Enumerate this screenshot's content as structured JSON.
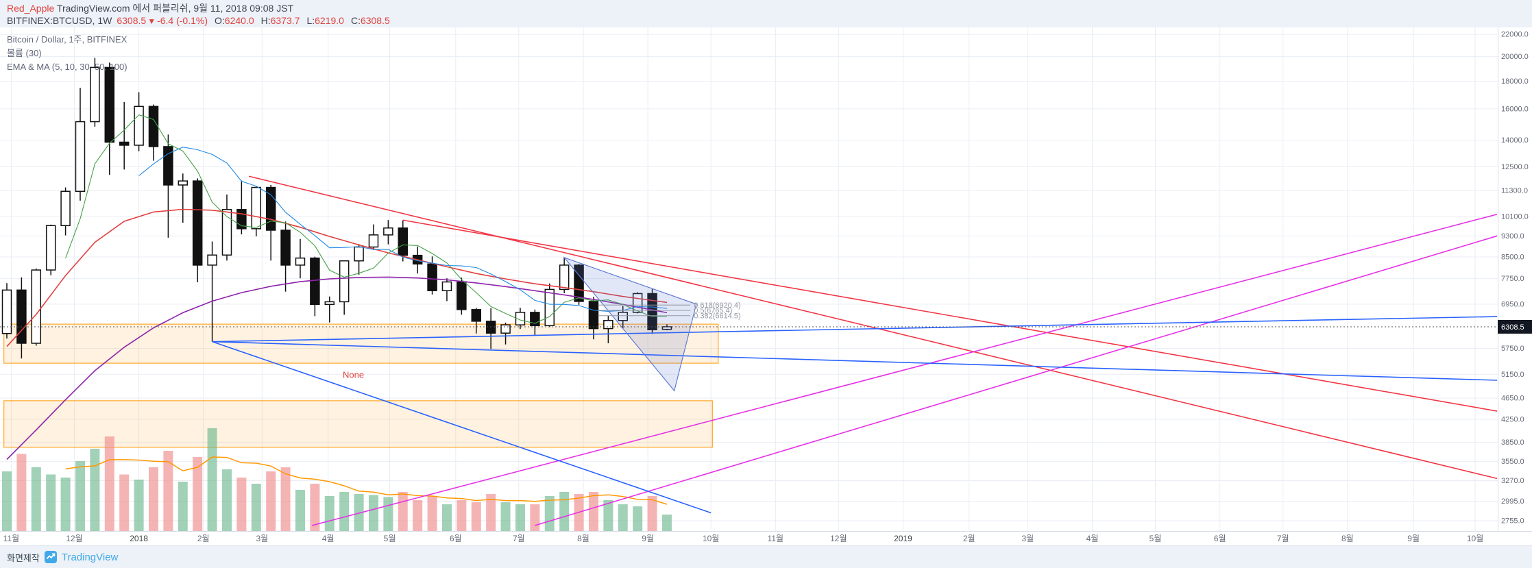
{
  "header": {
    "publisher": "Red_Apple",
    "publish_info": "TradingView.com 에서 퍼블리쉬, 9월 11, 2018 09:08 JST"
  },
  "quote": {
    "symbol": "BITFINEX:BTCUSD,",
    "interval": "1W",
    "last": "6308.5",
    "direction": "▼",
    "change": "-6.4 (-0.1%)",
    "o_label": "O:",
    "o_value": "6240.0",
    "h_label": "H:",
    "h_value": "6373.7",
    "l_label": "L:",
    "l_value": "6219.0",
    "c_label": "C:",
    "c_value": "6308.5"
  },
  "legend": {
    "title": "Bitcoin / Dollar, 1주, BITFINEX",
    "volume": "볼륨 (30)",
    "ma": "EMA & MA (5, 10, 30, 50, 100)"
  },
  "footer": {
    "made_label": "화면제작",
    "brand": "TradingView"
  },
  "colors": {
    "accent_red": "#e0433e",
    "brand_blue": "#3fa9e8"
  },
  "chart_data": {
    "type": "candlestick",
    "title": "Bitcoin / Dollar, 1주, BITFINEX",
    "symbol": "BITFINEX:BTCUSD",
    "interval": "1W",
    "yscale": "log",
    "ylim": [
      2637,
      22660
    ],
    "xlim_weeks": [
      -0.467,
      101.64
    ],
    "grid": true,
    "last_price": 6308.5,
    "price_ticks": [
      22000,
      20000,
      18000,
      16000,
      14000,
      12500,
      11300,
      10100,
      9300,
      8500,
      7750,
      6950,
      5750,
      5150,
      4650,
      4250,
      3850,
      3550,
      3270,
      2995,
      2755
    ],
    "time_ticks": [
      {
        "label": "11월",
        "week": 0.3
      },
      {
        "label": "12월",
        "week": 4.6
      },
      {
        "label": "2018",
        "week": 9.0,
        "year": true
      },
      {
        "label": "2월",
        "week": 13.4
      },
      {
        "label": "3월",
        "week": 17.4
      },
      {
        "label": "4월",
        "week": 21.9
      },
      {
        "label": "5월",
        "week": 26.1
      },
      {
        "label": "6월",
        "week": 30.6
      },
      {
        "label": "7월",
        "week": 34.9
      },
      {
        "label": "8월",
        "week": 39.3
      },
      {
        "label": "9월",
        "week": 43.7
      },
      {
        "label": "10월",
        "week": 48.0
      },
      {
        "label": "11월",
        "week": 52.4
      },
      {
        "label": "12월",
        "week": 56.7
      },
      {
        "label": "2019",
        "week": 61.1,
        "year": true
      },
      {
        "label": "2월",
        "week": 65.6
      },
      {
        "label": "3월",
        "week": 69.6
      },
      {
        "label": "4월",
        "week": 74.0
      },
      {
        "label": "5월",
        "week": 78.3
      },
      {
        "label": "6월",
        "week": 82.7
      },
      {
        "label": "7월",
        "week": 87.0
      },
      {
        "label": "8월",
        "week": 91.4
      },
      {
        "label": "9월",
        "week": 95.9
      },
      {
        "label": "10월",
        "week": 100.1
      }
    ],
    "candles": [
      [
        "2017-10-30",
        6130,
        7600,
        6000,
        7380,
        0.58
      ],
      [
        "2017-11-06",
        7380,
        7790,
        5510,
        5880,
        0.75
      ],
      [
        "2017-11-13",
        5880,
        8090,
        5820,
        8040,
        0.62
      ],
      [
        "2017-11-20",
        8040,
        9760,
        7860,
        9720,
        0.55
      ],
      [
        "2017-11-27",
        9720,
        11440,
        9320,
        11250,
        0.52
      ],
      [
        "2017-12-04",
        11250,
        17500,
        10810,
        15150,
        0.68
      ],
      [
        "2017-12-11",
        15150,
        19891,
        14830,
        19100,
        0.8
      ],
      [
        "2017-12-18",
        19100,
        19500,
        12070,
        13880,
        0.92
      ],
      [
        "2017-12-25",
        13880,
        16480,
        12350,
        13700,
        0.55
      ],
      [
        "2018-01-01",
        13700,
        17180,
        13350,
        16170,
        0.5
      ],
      [
        "2018-01-08",
        16170,
        16300,
        12820,
        13620,
        0.62
      ],
      [
        "2018-01-15",
        13620,
        14340,
        9230,
        11560,
        0.78
      ],
      [
        "2018-01-22",
        11560,
        12140,
        9840,
        11760,
        0.48
      ],
      [
        "2018-01-29",
        11760,
        11890,
        7630,
        8210,
        0.72
      ],
      [
        "2018-02-05",
        8210,
        9080,
        5920,
        8570,
        1.0
      ],
      [
        "2018-02-12",
        8570,
        11100,
        8370,
        10410,
        0.6
      ],
      [
        "2018-02-19",
        10410,
        11780,
        9360,
        9590,
        0.52
      ],
      [
        "2018-02-26",
        9590,
        11500,
        9280,
        11440,
        0.46
      ],
      [
        "2018-03-05",
        11440,
        11560,
        8370,
        9530,
        0.58
      ],
      [
        "2018-03-12",
        9530,
        9890,
        7330,
        8210,
        0.62
      ],
      [
        "2018-03-19",
        8210,
        9180,
        7760,
        8460,
        0.4
      ],
      [
        "2018-03-26",
        8460,
        8510,
        6600,
        6940,
        0.46
      ],
      [
        "2018-04-02",
        6940,
        7180,
        6425,
        7020,
        0.34
      ],
      [
        "2018-04-09",
        7020,
        8230,
        6640,
        8360,
        0.38
      ],
      [
        "2018-04-16",
        8360,
        8980,
        7880,
        8870,
        0.36
      ],
      [
        "2018-04-23",
        8870,
        9770,
        8760,
        9340,
        0.35
      ],
      [
        "2018-04-30",
        9340,
        9950,
        8970,
        9620,
        0.33
      ],
      [
        "2018-05-07",
        9620,
        9940,
        8340,
        8560,
        0.38
      ],
      [
        "2018-05-14",
        8560,
        8890,
        7920,
        8250,
        0.3
      ],
      [
        "2018-05-21",
        8250,
        8520,
        7240,
        7360,
        0.34
      ],
      [
        "2018-05-28",
        7360,
        7760,
        7040,
        7640,
        0.26
      ],
      [
        "2018-06-04",
        7640,
        7780,
        6640,
        6790,
        0.3
      ],
      [
        "2018-06-11",
        6790,
        6840,
        6130,
        6460,
        0.28
      ],
      [
        "2018-06-18",
        6460,
        6830,
        5740,
        6140,
        0.36
      ],
      [
        "2018-06-25",
        6140,
        6420,
        5850,
        6360,
        0.28
      ],
      [
        "2018-07-02",
        6360,
        6840,
        6250,
        6710,
        0.26
      ],
      [
        "2018-07-09",
        6710,
        6790,
        6080,
        6340,
        0.26
      ],
      [
        "2018-07-16",
        6340,
        7590,
        6300,
        7400,
        0.34
      ],
      [
        "2018-07-23",
        7400,
        8480,
        7280,
        8210,
        0.38
      ],
      [
        "2018-07-30",
        8210,
        8250,
        6930,
        7030,
        0.36
      ],
      [
        "2018-08-06",
        7030,
        7170,
        5980,
        6260,
        0.38
      ],
      [
        "2018-08-13",
        6260,
        6620,
        5880,
        6480,
        0.3
      ],
      [
        "2018-08-20",
        6480,
        6890,
        6270,
        6710,
        0.26
      ],
      [
        "2018-08-27",
        6710,
        7310,
        6680,
        7270,
        0.24
      ],
      [
        "2018-09-03",
        7270,
        7410,
        6120,
        6230,
        0.34
      ],
      [
        "2018-09-10",
        6240,
        6373.7,
        6219.0,
        6308.5,
        0.16
      ]
    ],
    "ma_lines": [
      {
        "name": "ma-red-line",
        "color": "#e23e3e",
        "points": [
          [
            0,
            5800
          ],
          [
            2,
            6650
          ],
          [
            4,
            7850
          ],
          [
            6,
            9050
          ],
          [
            8,
            9900
          ],
          [
            10,
            10300
          ],
          [
            12,
            10420
          ],
          [
            14,
            10380
          ],
          [
            16,
            10220
          ],
          [
            18,
            9980
          ],
          [
            20,
            9650
          ],
          [
            22,
            9280
          ],
          [
            24,
            8950
          ],
          [
            26,
            8650
          ],
          [
            28,
            8400
          ],
          [
            30,
            8150
          ],
          [
            32,
            7920
          ],
          [
            34,
            7740
          ],
          [
            36,
            7580
          ],
          [
            38,
            7460
          ],
          [
            40,
            7330
          ],
          [
            42,
            7180
          ],
          [
            44,
            7060
          ],
          [
            45,
            7000
          ]
        ]
      },
      {
        "name": "ma-purple-line",
        "color": "#8e24aa",
        "points": [
          [
            0,
            3580
          ],
          [
            2,
            4060
          ],
          [
            4,
            4620
          ],
          [
            6,
            5230
          ],
          [
            8,
            5780
          ],
          [
            10,
            6280
          ],
          [
            12,
            6700
          ],
          [
            14,
            7040
          ],
          [
            16,
            7300
          ],
          [
            18,
            7500
          ],
          [
            20,
            7650
          ],
          [
            22,
            7740
          ],
          [
            24,
            7790
          ],
          [
            26,
            7800
          ],
          [
            28,
            7770
          ],
          [
            30,
            7710
          ],
          [
            32,
            7610
          ],
          [
            34,
            7490
          ],
          [
            36,
            7360
          ],
          [
            38,
            7230
          ],
          [
            40,
            7090
          ],
          [
            42,
            6940
          ],
          [
            44,
            6780
          ],
          [
            45,
            6700
          ]
        ]
      }
    ],
    "overlays": {
      "trend_lines": [
        {
          "name": "red-descending-trendline-upper",
          "color": "#f23645",
          "p1": [
            16.5,
            12000
          ],
          "p2": [
            101.6,
            3300
          ]
        },
        {
          "name": "red-descending-trendline-lower",
          "color": "#f23645",
          "p1": [
            27,
            9950
          ],
          "p2": [
            101.6,
            4400
          ]
        },
        {
          "name": "magenta-ascending-trendline-1",
          "color": "#e632e6",
          "p1": [
            20.8,
            2700
          ],
          "p2": [
            101.6,
            10200
          ]
        },
        {
          "name": "magenta-ascending-trendline-2",
          "color": "#e632e6",
          "p1": [
            36,
            2700
          ],
          "p2": [
            101.6,
            9300
          ]
        },
        {
          "name": "blue-fan-line-upper",
          "color": "#2962ff",
          "p1": [
            14,
            5920
          ],
          "p2": [
            101.6,
            6590
          ]
        },
        {
          "name": "blue-fan-line-middle",
          "color": "#2962ff",
          "p1": [
            14,
            5920
          ],
          "p2": [
            101.6,
            5020
          ]
        },
        {
          "name": "blue-fan-line-lower",
          "color": "#2962ff",
          "p1": [
            14,
            5920
          ],
          "p2": [
            48,
            2850
          ]
        }
      ],
      "rectangles": [
        {
          "name": "support-zone-upper",
          "w1": -0.2,
          "w2": 48.5,
          "p1": 6380,
          "p2": 5400,
          "stroke": "#ff9800",
          "fill": "rgba(255,152,0,0.12)"
        },
        {
          "name": "support-zone-lower",
          "w1": -0.2,
          "w2": 48.1,
          "p1": 4600,
          "p2": 3770,
          "stroke": "#ff9800",
          "fill": "rgba(255,152,0,0.12)"
        }
      ],
      "triangle": {
        "points": [
          [
            38,
            8480
          ],
          [
            47,
            6950
          ],
          [
            45.5,
            4800
          ]
        ],
        "stroke": "#5f7bd5",
        "fill": "rgba(95,123,213,0.18)"
      },
      "fib": {
        "w1": 40.3,
        "w2": 46.6,
        "color": "#9598a1",
        "levels": [
          {
            "label": "0.618(6920.4)",
            "price": 6920.4
          },
          {
            "label": "0.5(6765.4)",
            "price": 6765.4
          },
          {
            "label": "0.382(6614.5)",
            "price": 6614.5
          }
        ]
      },
      "none_label": {
        "text": "None",
        "week": 22.9,
        "price": 5070,
        "color": "#e0433e"
      }
    },
    "colors": {
      "up_candle": "#ffffff",
      "down_candle": "#111111",
      "candle_border": "#111111",
      "vol_up": "rgba(111,185,143,0.65)",
      "vol_down": "rgba(239,140,140,0.65)",
      "grid": "#e9edf4",
      "axis_border": "#d6dbe8",
      "axis_text": "#656a77",
      "badge_bg": "#131722",
      "badge_text": "#ffffff",
      "price_line": "#555555",
      "vol_ma": "#ff9800",
      "ma5": "#43a047",
      "ma10": "#1e88e5"
    }
  }
}
